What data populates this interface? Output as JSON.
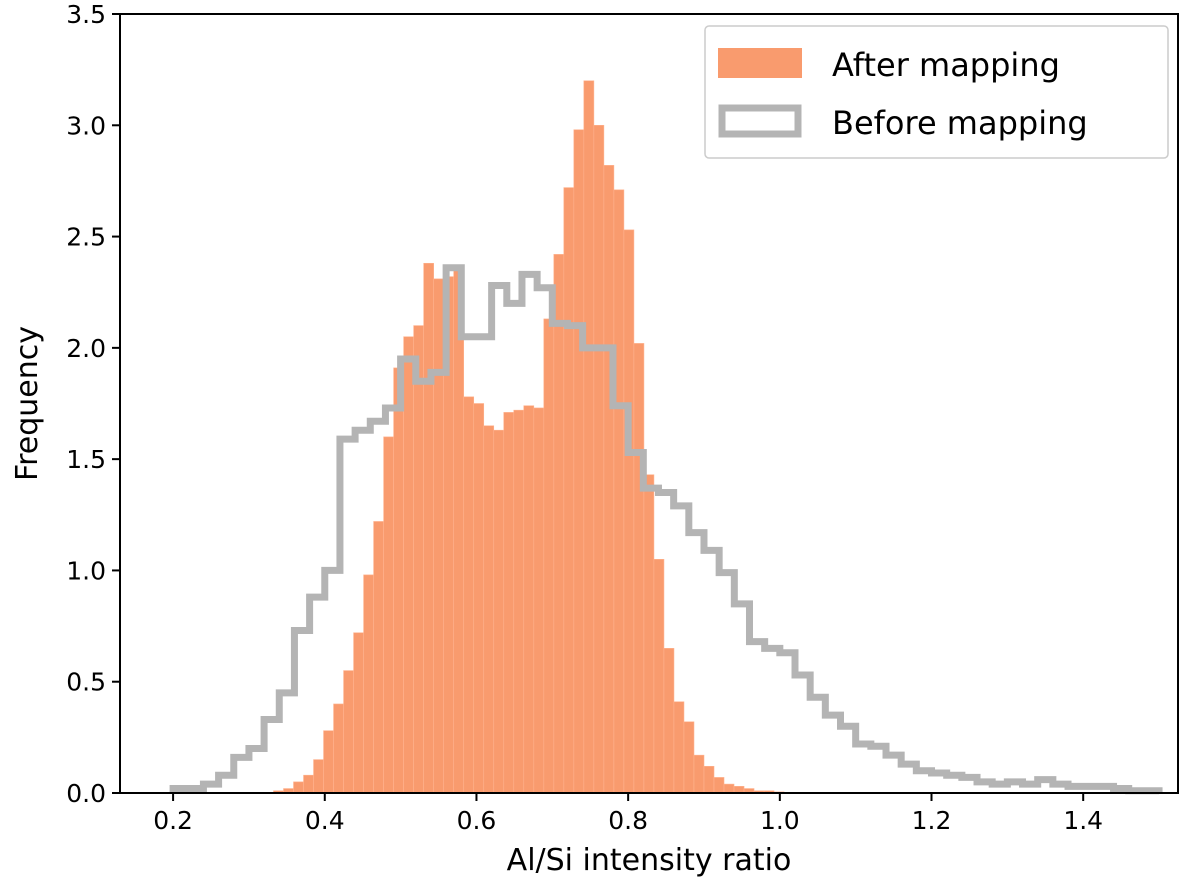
{
  "chart_data": {
    "type": "histogram",
    "title": "",
    "xlabel": "Al/Si intensity ratio",
    "ylabel": "Frequency",
    "xlim": [
      0.13,
      1.525
    ],
    "ylim": [
      0,
      3.5
    ],
    "xticks": [
      0.2,
      0.4,
      0.6,
      0.8,
      1.0,
      1.2,
      1.4
    ],
    "xtick_labels": [
      "0.2",
      "0.4",
      "0.6",
      "0.8",
      "1.0",
      "1.2",
      "1.4"
    ],
    "yticks": [
      0.0,
      0.5,
      1.0,
      1.5,
      2.0,
      2.5,
      3.0,
      3.5
    ],
    "ytick_labels": [
      "0.0",
      "0.5",
      "1.0",
      "1.5",
      "2.0",
      "2.5",
      "3.0",
      "3.5"
    ],
    "legend_position": "top-right",
    "series": [
      {
        "name": "After mapping",
        "style": "filled",
        "color": "#f99b6e",
        "edges": [
          0.24,
          0.2532,
          0.2664,
          0.2796,
          0.2928,
          0.306,
          0.3192,
          0.3324,
          0.3456,
          0.3588,
          0.372,
          0.3852,
          0.3984,
          0.4116,
          0.4248,
          0.438,
          0.4512,
          0.4644,
          0.4776,
          0.4908,
          0.504,
          0.5172,
          0.5304,
          0.5436,
          0.5568,
          0.57,
          0.5832,
          0.5964,
          0.6096,
          0.6228,
          0.636,
          0.6492,
          0.6624,
          0.6756,
          0.6888,
          0.702,
          0.7152,
          0.7284,
          0.7416,
          0.7548,
          0.768,
          0.7812,
          0.7944,
          0.8076,
          0.8208,
          0.834,
          0.8472,
          0.8604,
          0.8736,
          0.8868,
          0.9,
          0.9132,
          0.9264,
          0.9396,
          0.9528,
          0.966,
          0.9792,
          0.9924,
          1.0056,
          1.0188,
          1.032,
          1.0452,
          1.0584,
          1.0716,
          1.0848,
          1.098
        ],
        "values": [
          0.0,
          0.0,
          0.0,
          0.0,
          0.0,
          0.0,
          0.0,
          0.01,
          0.02,
          0.05,
          0.08,
          0.15,
          0.28,
          0.4,
          0.55,
          0.72,
          0.98,
          1.22,
          1.6,
          1.91,
          2.05,
          2.1,
          2.38,
          2.31,
          2.32,
          2.35,
          1.78,
          1.75,
          1.65,
          1.63,
          1.71,
          1.72,
          1.74,
          1.73,
          2.13,
          2.42,
          2.72,
          2.98,
          3.2,
          3.0,
          2.82,
          2.71,
          2.53,
          2.02,
          1.43,
          1.05,
          0.65,
          0.41,
          0.32,
          0.17,
          0.12,
          0.07,
          0.04,
          0.03,
          0.02,
          0.01,
          0.01,
          0.005,
          0.0,
          0.0,
          0.0,
          0.0,
          0.0,
          0.0,
          0.0
        ]
      },
      {
        "name": "Before mapping",
        "style": "step",
        "color": "#b4b4b4",
        "edges": [
          0.2,
          0.22,
          0.24,
          0.26,
          0.28,
          0.3,
          0.32,
          0.34,
          0.36,
          0.38,
          0.4,
          0.42,
          0.44,
          0.46,
          0.48,
          0.5,
          0.52,
          0.54,
          0.56,
          0.58,
          0.6,
          0.62,
          0.64,
          0.66,
          0.68,
          0.7,
          0.72,
          0.74,
          0.76,
          0.78,
          0.8,
          0.82,
          0.84,
          0.86,
          0.88,
          0.9,
          0.92,
          0.94,
          0.96,
          0.98,
          1.0,
          1.02,
          1.04,
          1.06,
          1.08,
          1.1,
          1.12,
          1.14,
          1.16,
          1.18,
          1.2,
          1.22,
          1.24,
          1.26,
          1.28,
          1.3,
          1.32,
          1.34,
          1.36,
          1.38,
          1.4,
          1.42,
          1.44,
          1.46,
          1.48,
          1.5
        ],
        "values": [
          0.02,
          0.02,
          0.04,
          0.08,
          0.16,
          0.2,
          0.33,
          0.45,
          0.73,
          0.88,
          1.0,
          1.59,
          1.63,
          1.67,
          1.73,
          1.95,
          1.85,
          1.89,
          2.36,
          2.05,
          2.05,
          2.28,
          2.2,
          2.33,
          2.27,
          2.11,
          2.1,
          2.0,
          2.0,
          1.74,
          1.53,
          1.37,
          1.35,
          1.29,
          1.17,
          1.09,
          0.99,
          0.85,
          0.68,
          0.65,
          0.63,
          0.53,
          0.43,
          0.35,
          0.3,
          0.22,
          0.21,
          0.17,
          0.13,
          0.1,
          0.09,
          0.08,
          0.07,
          0.05,
          0.04,
          0.05,
          0.04,
          0.06,
          0.04,
          0.03,
          0.03,
          0.03,
          0.02,
          0.01,
          0.01
        ]
      }
    ]
  }
}
